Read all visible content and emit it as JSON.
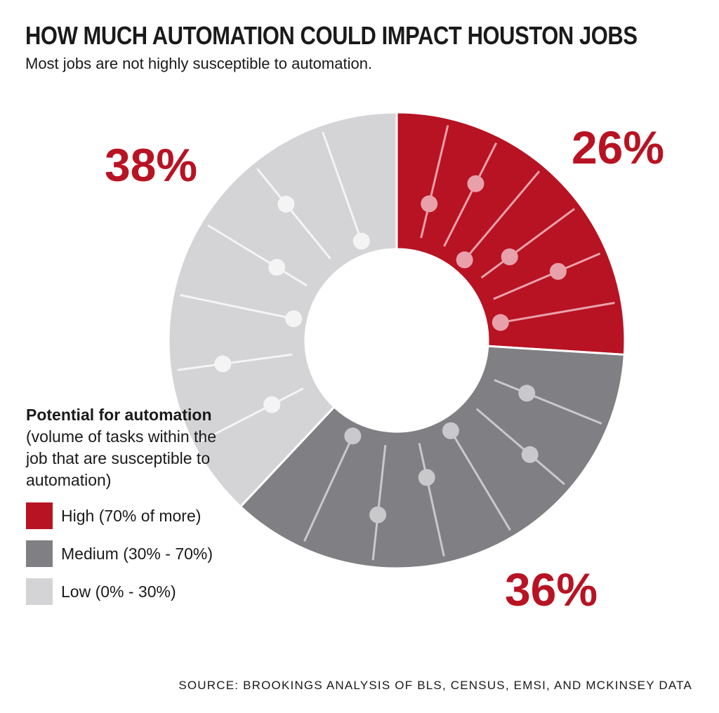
{
  "chart_data": {
    "type": "pie",
    "donut": true,
    "title": "HOW MUCH AUTOMATION COULD IMPACT HOUSTON JOBS",
    "subtitle": "Most jobs are not highly susceptible to automation.",
    "legend_title": "Potential for automation",
    "legend_description": "(volume of tasks within the job that are susceptible to automation)",
    "legend_position": "bottom-left",
    "slices": [
      {
        "name": "High (70% of more)",
        "value": 26,
        "label": "26%",
        "color": "#b81323"
      },
      {
        "name": "Medium (30% - 70%)",
        "value": 36,
        "label": "36%",
        "color": "#808084"
      },
      {
        "name": "Low (0% - 30%)",
        "value": 38,
        "label": "38%",
        "color": "#d4d4d7"
      }
    ],
    "source": "SOURCE: BROOKINGS ANALYSIS OF BLS, CENSUS, EMSI, AND MCKINSEY DATA"
  }
}
